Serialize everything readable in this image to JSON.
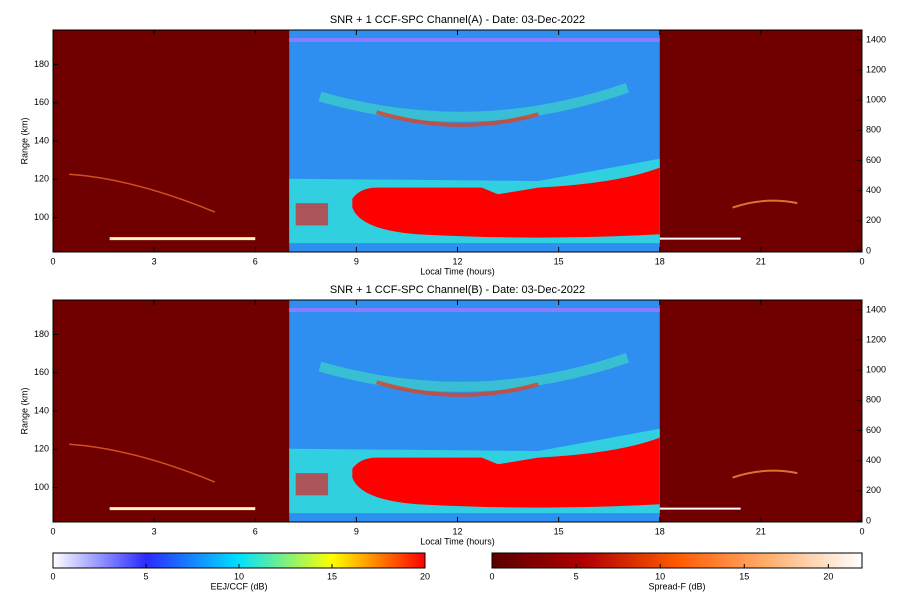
{
  "chart_data": [
    {
      "type": "heatmap",
      "title": "SNR + 1 CCF-SPC Channel(A) - Date: 03-Dec-2022",
      "xlabel": "Local Time (hours)",
      "ylabel": "Range (km)",
      "xlim": [
        0,
        24
      ],
      "xticks": [
        0,
        3,
        6,
        9,
        12,
        15,
        18,
        21,
        {
          "value": 24,
          "label": "0"
        }
      ],
      "ylim": [
        82,
        198
      ],
      "yticks": [
        100,
        120,
        140,
        160,
        180
      ],
      "y2lim": [
        -7,
        1466
      ],
      "y2ticks": [
        0,
        200,
        400,
        600,
        800,
        1000,
        1200,
        1400
      ]
    },
    {
      "type": "heatmap",
      "title": "SNR + 1 CCF-SPC Channel(B) - Date: 03-Dec-2022",
      "xlabel": "Local Time (hours)",
      "ylabel": "Range (km)",
      "xlim": [
        0,
        24
      ],
      "xticks": [
        0,
        3,
        6,
        9,
        12,
        15,
        18,
        21,
        {
          "value": 24,
          "label": "0"
        }
      ],
      "ylim": [
        82,
        198
      ],
      "yticks": [
        100,
        120,
        140,
        160,
        180
      ],
      "y2lim": [
        -7,
        1466
      ],
      "y2ticks": [
        0,
        200,
        400,
        600,
        800,
        1000,
        1200,
        1400
      ]
    },
    {
      "type": "colorbar",
      "label": "EEJ/CCF (dB)",
      "xlim": [
        0,
        20
      ],
      "xticks": [
        0,
        5,
        10,
        15,
        20
      ],
      "colors": [
        "#ffffff",
        "#2a2aff",
        "#00e0ff",
        "#ffff00",
        "#ff0000"
      ]
    },
    {
      "type": "colorbar",
      "label": "Spread-F (dB)",
      "xlim": [
        0,
        22
      ],
      "xticks": [
        0,
        5,
        10,
        15,
        20
      ],
      "colors": [
        "#5a0000",
        "#b00000",
        "#ff5a00",
        "#ffb070",
        "#ffffff"
      ]
    }
  ]
}
